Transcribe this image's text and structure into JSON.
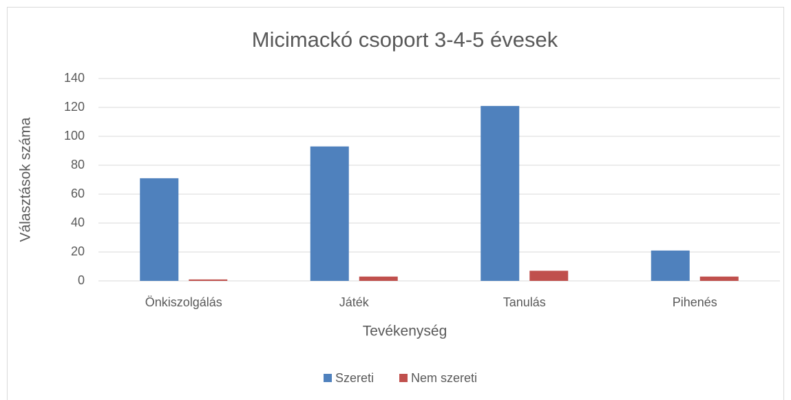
{
  "chart_data": {
    "type": "bar",
    "title": "Micimackó csoport 3-4-5 évesek",
    "x_label": "Tevékenység",
    "y_label": "Választások száma",
    "categories": [
      "Önkiszolgálás",
      "Játék",
      "Tanulás",
      "Pihenés"
    ],
    "series": [
      {
        "name": "Szereti",
        "color": "#4f81bd",
        "values": [
          71,
          93,
          121,
          21
        ]
      },
      {
        "name": "Nem szereti",
        "color": "#c0504d",
        "values": [
          1,
          3,
          7,
          3
        ]
      }
    ],
    "ylim": [
      0,
      140
    ],
    "yticks": [
      0,
      20,
      40,
      60,
      80,
      100,
      120,
      140
    ],
    "grid": true,
    "legend": "bottom"
  }
}
